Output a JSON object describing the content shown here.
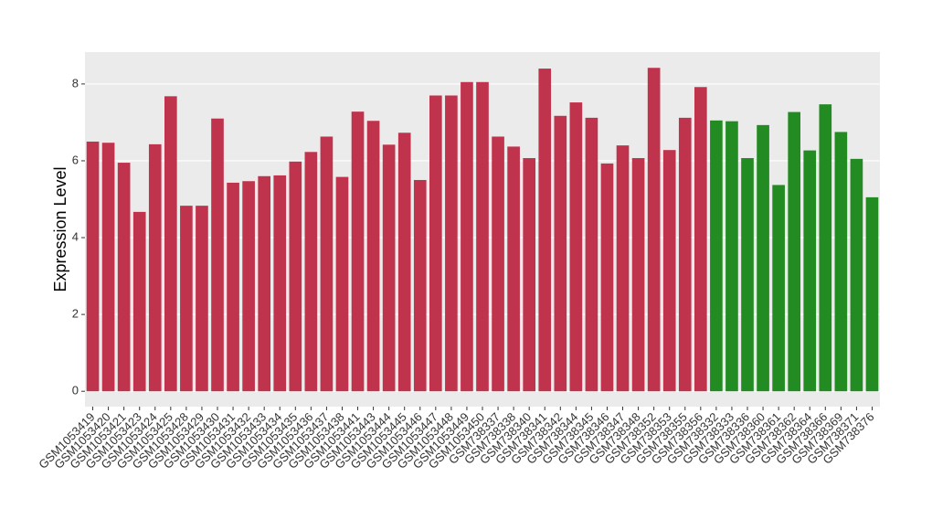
{
  "chart_data": {
    "type": "bar",
    "y_label": "Expression Level",
    "categories": [
      "GSM1053419",
      "GSM1053420",
      "GSM1053421",
      "GSM1053423",
      "GSM1053424",
      "GSM1053425",
      "GSM1053428",
      "GSM1053429",
      "GSM1053430",
      "GSM1053431",
      "GSM1053432",
      "GSM1053433",
      "GSM1053434",
      "GSM1053435",
      "GSM1053436",
      "GSM1053437",
      "GSM1053438",
      "GSM1053441",
      "GSM1053443",
      "GSM1053444",
      "GSM1053445",
      "GSM1053446",
      "GSM1053447",
      "GSM1053448",
      "GSM1053449",
      "GSM1053450",
      "GSM738337",
      "GSM738338",
      "GSM738340",
      "GSM738341",
      "GSM738342",
      "GSM738344",
      "GSM738345",
      "GSM738346",
      "GSM738347",
      "GSM738348",
      "GSM738352",
      "GSM738353",
      "GSM738355",
      "GSM738356",
      "GSM738332",
      "GSM738333",
      "GSM738336",
      "GSM738360",
      "GSM738361",
      "GSM738362",
      "GSM738364",
      "GSM738366",
      "GSM738369",
      "GSM738371",
      "GSM738376"
    ],
    "values": [
      6.5,
      6.47,
      5.95,
      4.67,
      6.43,
      7.68,
      4.83,
      4.83,
      7.1,
      5.43,
      5.47,
      5.6,
      5.62,
      5.98,
      6.23,
      6.63,
      5.58,
      7.28,
      7.04,
      6.42,
      6.73,
      5.5,
      7.7,
      7.7,
      8.05,
      8.05,
      6.63,
      6.37,
      6.07,
      8.4,
      7.17,
      7.52,
      7.12,
      5.93,
      6.4,
      6.07,
      8.42,
      6.28,
      7.12,
      7.92,
      7.05,
      7.03,
      6.07,
      6.93,
      5.37,
      7.27,
      6.27,
      7.47,
      6.75,
      6.05,
      5.05
    ],
    "colors": [
      "#c0334d",
      "#c0334d",
      "#c0334d",
      "#c0334d",
      "#c0334d",
      "#c0334d",
      "#c0334d",
      "#c0334d",
      "#c0334d",
      "#c0334d",
      "#c0334d",
      "#c0334d",
      "#c0334d",
      "#c0334d",
      "#c0334d",
      "#c0334d",
      "#c0334d",
      "#c0334d",
      "#c0334d",
      "#c0334d",
      "#c0334d",
      "#c0334d",
      "#c0334d",
      "#c0334d",
      "#c0334d",
      "#c0334d",
      "#c0334d",
      "#c0334d",
      "#c0334d",
      "#c0334d",
      "#c0334d",
      "#c0334d",
      "#c0334d",
      "#c0334d",
      "#c0334d",
      "#c0334d",
      "#c0334d",
      "#c0334d",
      "#c0334d",
      "#c0334d",
      "#228b22",
      "#228b22",
      "#228b22",
      "#228b22",
      "#228b22",
      "#228b22",
      "#228b22",
      "#228b22",
      "#228b22",
      "#228b22",
      "#228b22"
    ],
    "ylim": [
      -0.4,
      8.83
    ],
    "yticks": [
      0,
      2,
      4,
      6,
      8
    ],
    "grid": true
  }
}
